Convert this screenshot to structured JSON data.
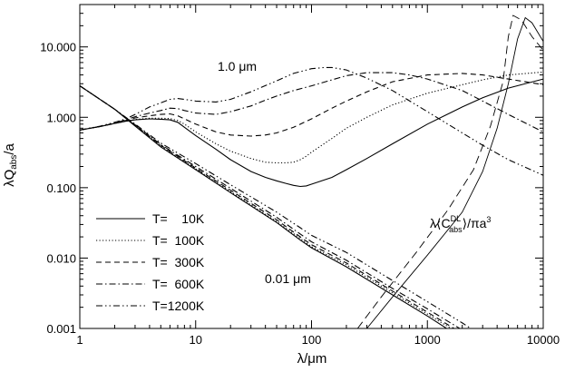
{
  "chart_data": {
    "type": "line",
    "xlabel": "λ/μm",
    "ylabel": "λQabs/a",
    "xscale": "log",
    "yscale": "log",
    "xlim": [
      1,
      10000
    ],
    "ylim": [
      0.001,
      40
    ],
    "xticks": [
      1,
      10,
      100,
      1000,
      10000
    ],
    "xtick_labels": [
      "1",
      "10",
      "100",
      "1000",
      "10000"
    ],
    "yticks": [
      0.001,
      0.01,
      0.1,
      1,
      10
    ],
    "ytick_labels": [
      "0.001",
      "0.010",
      "0.100",
      "1.000",
      "10.000"
    ],
    "grid": false,
    "legend_position": "bottom-left",
    "annotations": {
      "large_grain": "1.0 μm",
      "small_grain": "0.01 μm",
      "dl_label": "λ⟨C",
      "dl_sup": "DL",
      "dl_sub": "abs",
      "dl_tail": "⟩/πa",
      "dl_exp": "3"
    },
    "series": [
      {
        "name": "T=    10K",
        "style": "solid",
        "grain_1um": {
          "x": [
            1,
            1.5,
            2,
            2.5,
            3,
            4,
            5,
            6,
            7,
            8,
            10,
            15,
            20,
            30,
            40,
            50,
            60,
            70,
            80,
            90,
            100,
            150,
            200,
            300,
            500,
            1000,
            2000,
            3000,
            5000,
            10000
          ],
          "y": [
            0.66,
            0.74,
            0.82,
            0.88,
            0.92,
            0.95,
            0.94,
            0.92,
            0.85,
            0.72,
            0.55,
            0.35,
            0.25,
            0.17,
            0.14,
            0.125,
            0.115,
            0.108,
            0.104,
            0.106,
            0.112,
            0.14,
            0.18,
            0.26,
            0.42,
            0.8,
            1.4,
            1.9,
            2.6,
            3.5
          ]
        },
        "grain_001um": {
          "x": [
            1,
            2,
            3,
            5,
            10,
            20,
            50,
            80,
            100,
            200,
            500,
            1000,
            2000,
            5000,
            6300
          ],
          "y": [
            2.8,
            1.3,
            0.75,
            0.38,
            0.18,
            0.085,
            0.032,
            0.018,
            0.014,
            0.0075,
            0.003,
            0.0015,
            0.00072,
            0.00028,
            0.0002
          ]
        },
        "dl": {
          "x": [
            300,
            500,
            1000,
            2000,
            3000,
            4000,
            5000,
            6000,
            7000,
            8000,
            10000
          ],
          "y": [
            0.001,
            0.0028,
            0.011,
            0.045,
            0.17,
            0.7,
            3.0,
            13,
            26,
            22,
            12
          ]
        }
      },
      {
        "name": "T=  100K",
        "style": "dotted",
        "grain_1um": {
          "x": [
            1,
            1.5,
            2,
            2.5,
            3,
            4,
            5,
            6,
            7,
            8,
            10,
            15,
            20,
            30,
            40,
            50,
            60,
            70,
            80,
            90,
            100,
            150,
            200,
            300,
            500,
            1000,
            2000,
            3000,
            5000,
            10000
          ],
          "y": [
            0.66,
            0.74,
            0.82,
            0.88,
            0.93,
            0.97,
            0.97,
            0.96,
            0.9,
            0.8,
            0.62,
            0.42,
            0.33,
            0.26,
            0.23,
            0.225,
            0.225,
            0.23,
            0.25,
            0.28,
            0.32,
            0.5,
            0.7,
            1.0,
            1.5,
            2.2,
            2.9,
            3.4,
            4.0,
            4.4
          ]
        },
        "grain_001um": {
          "x": [
            1,
            2,
            3,
            5,
            10,
            20,
            50,
            80,
            100,
            200,
            500,
            1000,
            2000,
            5000,
            7500
          ],
          "y": [
            2.8,
            1.3,
            0.76,
            0.39,
            0.185,
            0.088,
            0.033,
            0.019,
            0.0145,
            0.008,
            0.0032,
            0.0016,
            0.0008,
            0.0003,
            0.0002
          ]
        }
      },
      {
        "name": "T=  300K",
        "style": "dashed",
        "grain_1um": {
          "x": [
            1,
            1.5,
            2,
            2.5,
            3,
            4,
            5,
            6,
            7,
            8,
            10,
            15,
            20,
            30,
            40,
            50,
            70,
            100,
            150,
            200,
            300,
            500,
            1000,
            2000,
            3000,
            5000,
            7000,
            10000
          ],
          "y": [
            0.66,
            0.74,
            0.82,
            0.9,
            0.98,
            1.05,
            1.1,
            1.12,
            1.05,
            0.95,
            0.8,
            0.62,
            0.56,
            0.54,
            0.56,
            0.6,
            0.72,
            0.95,
            1.35,
            1.7,
            2.3,
            3.2,
            4.0,
            4.2,
            4.0,
            3.5,
            3.2,
            2.9
          ]
        },
        "grain_001um": {
          "x": [
            1,
            2,
            3,
            5,
            10,
            20,
            50,
            80,
            100,
            200,
            500,
            1000,
            2000,
            5000,
            8000
          ],
          "y": [
            2.8,
            1.3,
            0.77,
            0.4,
            0.19,
            0.092,
            0.035,
            0.02,
            0.0155,
            0.0085,
            0.0034,
            0.0017,
            0.00085,
            0.00032,
            0.0002
          ]
        },
        "dl": {
          "x": [
            250,
            400,
            800,
            1500,
            2500,
            3500,
            4500,
            5000,
            5500,
            6500,
            8000,
            10000
          ],
          "y": [
            0.001,
            0.0028,
            0.012,
            0.048,
            0.18,
            0.75,
            3.2,
            14,
            28,
            24,
            14,
            9
          ]
        }
      },
      {
        "name": "T=  600K",
        "style": "dashdot",
        "grain_1um": {
          "x": [
            1,
            1.5,
            2,
            2.5,
            3,
            4,
            5,
            6,
            7,
            8,
            10,
            15,
            20,
            30,
            40,
            50,
            70,
            100,
            150,
            200,
            300,
            500,
            700,
            1000,
            2000,
            3000,
            5000,
            10000
          ],
          "y": [
            0.66,
            0.74,
            0.83,
            0.92,
            1.02,
            1.15,
            1.25,
            1.35,
            1.33,
            1.25,
            1.15,
            1.1,
            1.2,
            1.45,
            1.75,
            2.0,
            2.4,
            2.8,
            3.4,
            3.9,
            4.3,
            4.3,
            4.0,
            3.5,
            2.4,
            1.7,
            1.1,
            0.62
          ]
        },
        "grain_001um": {
          "x": [
            1,
            2,
            3,
            5,
            10,
            20,
            50,
            80,
            100,
            200,
            500,
            1000,
            2000,
            5000,
            9500
          ],
          "y": [
            2.8,
            1.3,
            0.78,
            0.41,
            0.2,
            0.098,
            0.038,
            0.022,
            0.017,
            0.0093,
            0.0037,
            0.0019,
            0.00095,
            0.00035,
            0.0002
          ]
        }
      },
      {
        "name": "T=1200K",
        "style": "dashdotdot",
        "grain_1um": {
          "x": [
            1,
            1.5,
            2,
            2.5,
            3,
            4,
            5,
            6,
            7,
            8,
            10,
            15,
            20,
            30,
            50,
            70,
            100,
            130,
            150,
            200,
            300,
            500,
            1000,
            2000,
            3000,
            5000,
            10000
          ],
          "y": [
            0.66,
            0.75,
            0.85,
            0.95,
            1.1,
            1.4,
            1.6,
            1.8,
            1.85,
            1.8,
            1.7,
            1.65,
            1.8,
            2.3,
            3.3,
            4.2,
            4.9,
            5.1,
            5.1,
            4.7,
            3.6,
            2.4,
            1.2,
            0.6,
            0.4,
            0.25,
            0.15
          ]
        },
        "grain_001um": {
          "x": [
            1,
            2,
            3,
            5,
            10,
            20,
            50,
            80,
            100,
            200,
            500,
            1000,
            2000,
            5000,
            10000
          ],
          "y": [
            2.8,
            1.3,
            0.8,
            0.43,
            0.22,
            0.11,
            0.045,
            0.027,
            0.021,
            0.012,
            0.0048,
            0.0024,
            0.0012,
            0.00045,
            0.00022
          ]
        }
      }
    ]
  }
}
